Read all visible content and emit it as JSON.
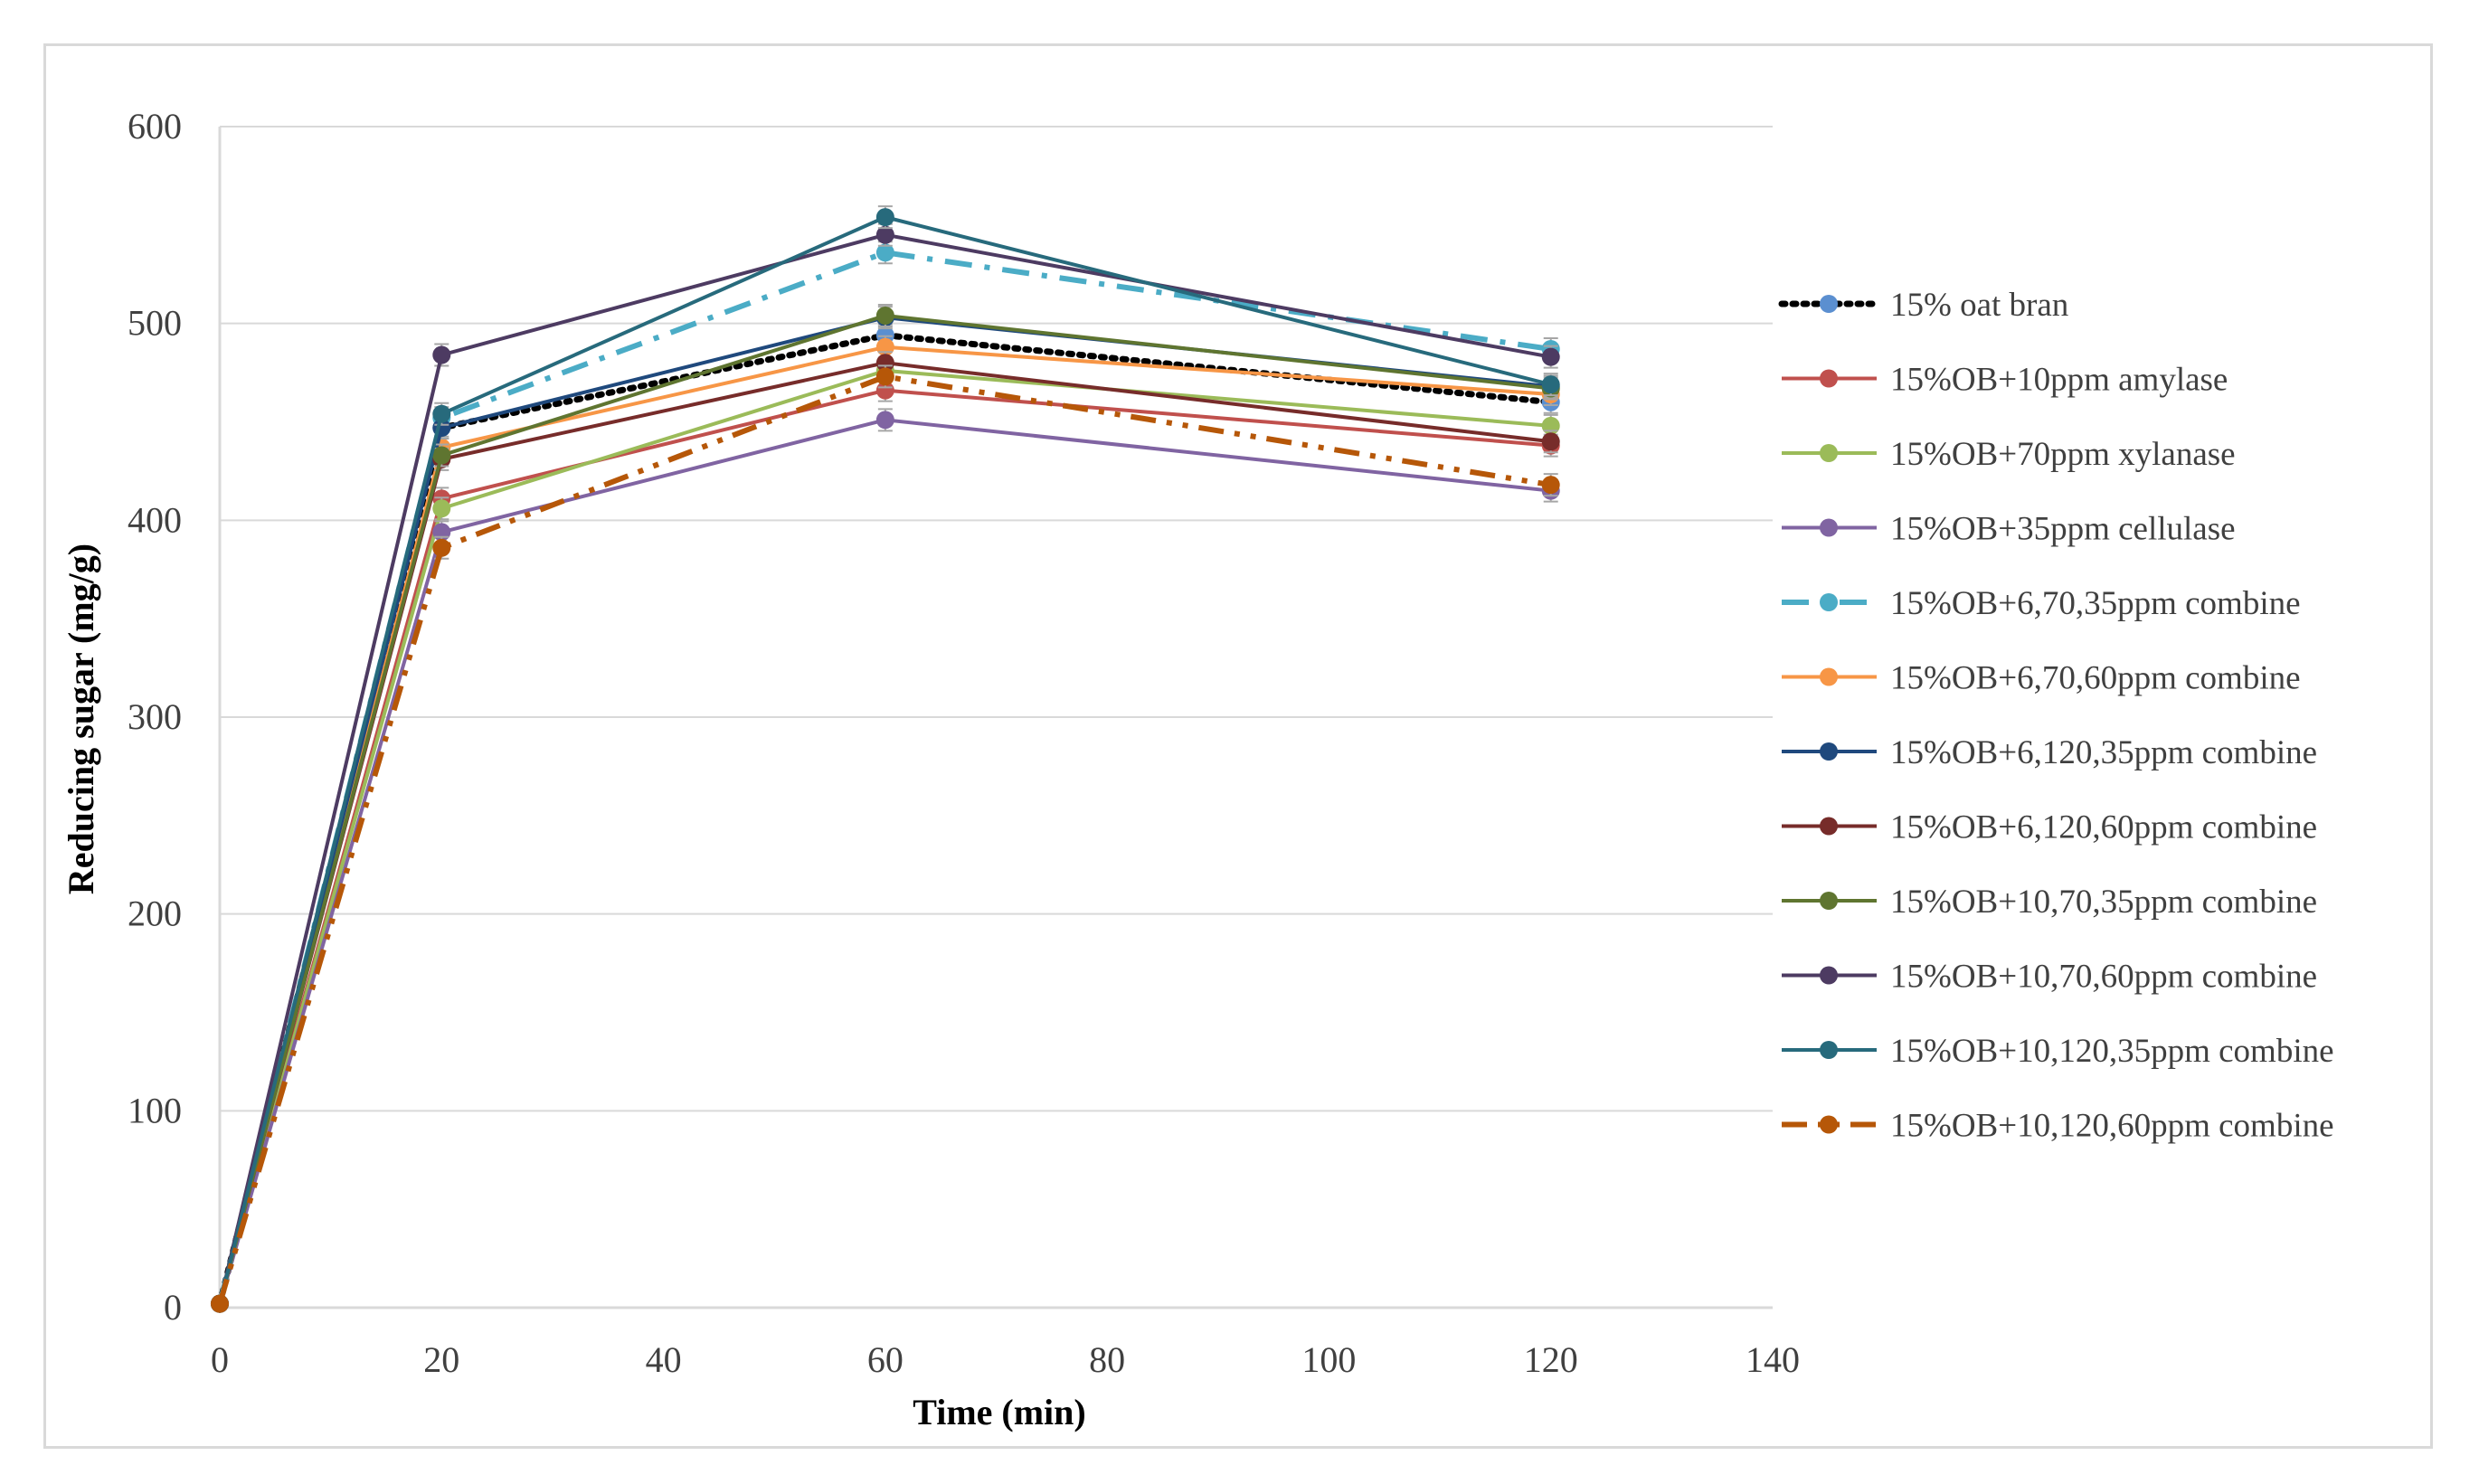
{
  "chart_data": {
    "type": "line",
    "title": "",
    "xlabel": "Time (min)",
    "ylabel": "Reducing sugar (mg/g)",
    "x": [
      0,
      20,
      60,
      120
    ],
    "xlim": [
      0,
      140
    ],
    "ylim": [
      0,
      600
    ],
    "xticks": [
      0,
      20,
      40,
      60,
      80,
      100,
      120,
      140
    ],
    "yticks": [
      0,
      100,
      200,
      300,
      400,
      500,
      600
    ],
    "xtick_labels": [
      "0",
      "20",
      "40",
      "60",
      "80",
      "100",
      "120",
      "140"
    ],
    "ytick_labels": [
      "0",
      "100",
      "200",
      "300",
      "400",
      "500",
      "600"
    ],
    "grid": "horizontal",
    "legend_position": "right",
    "series": [
      {
        "name": "15% oat bran",
        "values": [
          2,
          447,
          494,
          460
        ],
        "color": "#000000",
        "marker_color": "#5b8fd0",
        "dash": "dotted"
      },
      {
        "name": "15%OB+10ppm amylase",
        "values": [
          2,
          411,
          466,
          438
        ],
        "color": "#c0504d",
        "marker_color": "#c0504d",
        "dash": "solid"
      },
      {
        "name": "15%OB+70ppm xylanase",
        "values": [
          2,
          406,
          476,
          448
        ],
        "color": "#9bbb59",
        "marker_color": "#9bbb59",
        "dash": "solid"
      },
      {
        "name": "15%OB+35ppm cellulase",
        "values": [
          2,
          394,
          451,
          415
        ],
        "color": "#8064a2",
        "marker_color": "#8064a2",
        "dash": "solid"
      },
      {
        "name": "15%OB+6,70,35ppm combine",
        "values": [
          2,
          452,
          536,
          487
        ],
        "color": "#4bacc6",
        "marker_color": "#4bacc6",
        "dash": "dashdot"
      },
      {
        "name": "15%OB+6,70,60ppm combine",
        "values": [
          2,
          437,
          488,
          464
        ],
        "color": "#f79646",
        "marker_color": "#f79646",
        "dash": "solid"
      },
      {
        "name": "15%OB+6,120,35ppm combine",
        "values": [
          2,
          447,
          503,
          468
        ],
        "color": "#1f497d",
        "marker_color": "#1f497d",
        "dash": "solid"
      },
      {
        "name": "15%OB+6,120,60ppm combine",
        "values": [
          2,
          431,
          480,
          440
        ],
        "color": "#772c2a",
        "marker_color": "#772c2a",
        "dash": "solid"
      },
      {
        "name": "15%OB+10,70,35ppm combine",
        "values": [
          2,
          433,
          504,
          467
        ],
        "color": "#5f7530",
        "marker_color": "#5f7530",
        "dash": "solid"
      },
      {
        "name": "15%OB+10,70,60ppm combine",
        "values": [
          2,
          484,
          545,
          483
        ],
        "color": "#4d3b62",
        "marker_color": "#4d3b62",
        "dash": "solid"
      },
      {
        "name": "15%OB+10,120,35ppm combine",
        "values": [
          2,
          454,
          554,
          469
        ],
        "color": "#276a7c",
        "marker_color": "#276a7c",
        "dash": "solid"
      },
      {
        "name": "15%OB+10,120,60ppm combine",
        "values": [
          2,
          386,
          473,
          418
        ],
        "color": "#b65708",
        "marker_color": "#b65708",
        "dash": "dashdotdot"
      }
    ]
  }
}
